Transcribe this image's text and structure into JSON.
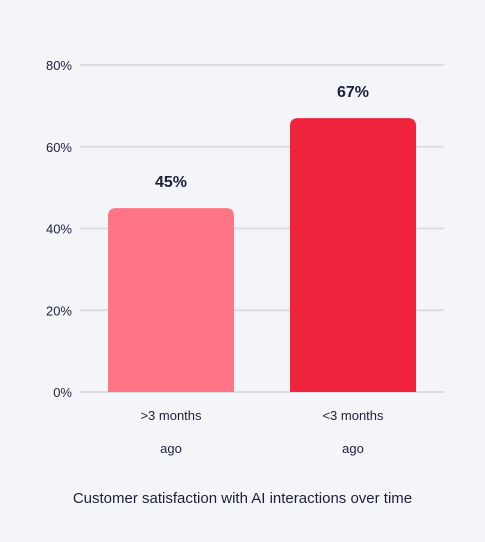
{
  "chart_data": {
    "type": "bar",
    "categories": [
      ">3 months ago",
      "<3 months ago"
    ],
    "category_lines": [
      [
        ">3 months",
        "ago"
      ],
      [
        "<3 months",
        "ago"
      ]
    ],
    "values": [
      45,
      67
    ],
    "data_labels": [
      "45%",
      "67%"
    ],
    "colors": [
      "#ff7586",
      "#f0233c"
    ],
    "title": "Customer satisfaction with AI interactions over time",
    "xlabel": "",
    "ylabel": "",
    "ylim": [
      0,
      80
    ],
    "yticks": [
      0,
      20,
      40,
      60,
      80
    ],
    "ytick_labels": [
      "0%",
      "20%",
      "40%",
      "60%",
      "80%"
    ],
    "grid": true,
    "grid_color": "#dcdde4"
  }
}
